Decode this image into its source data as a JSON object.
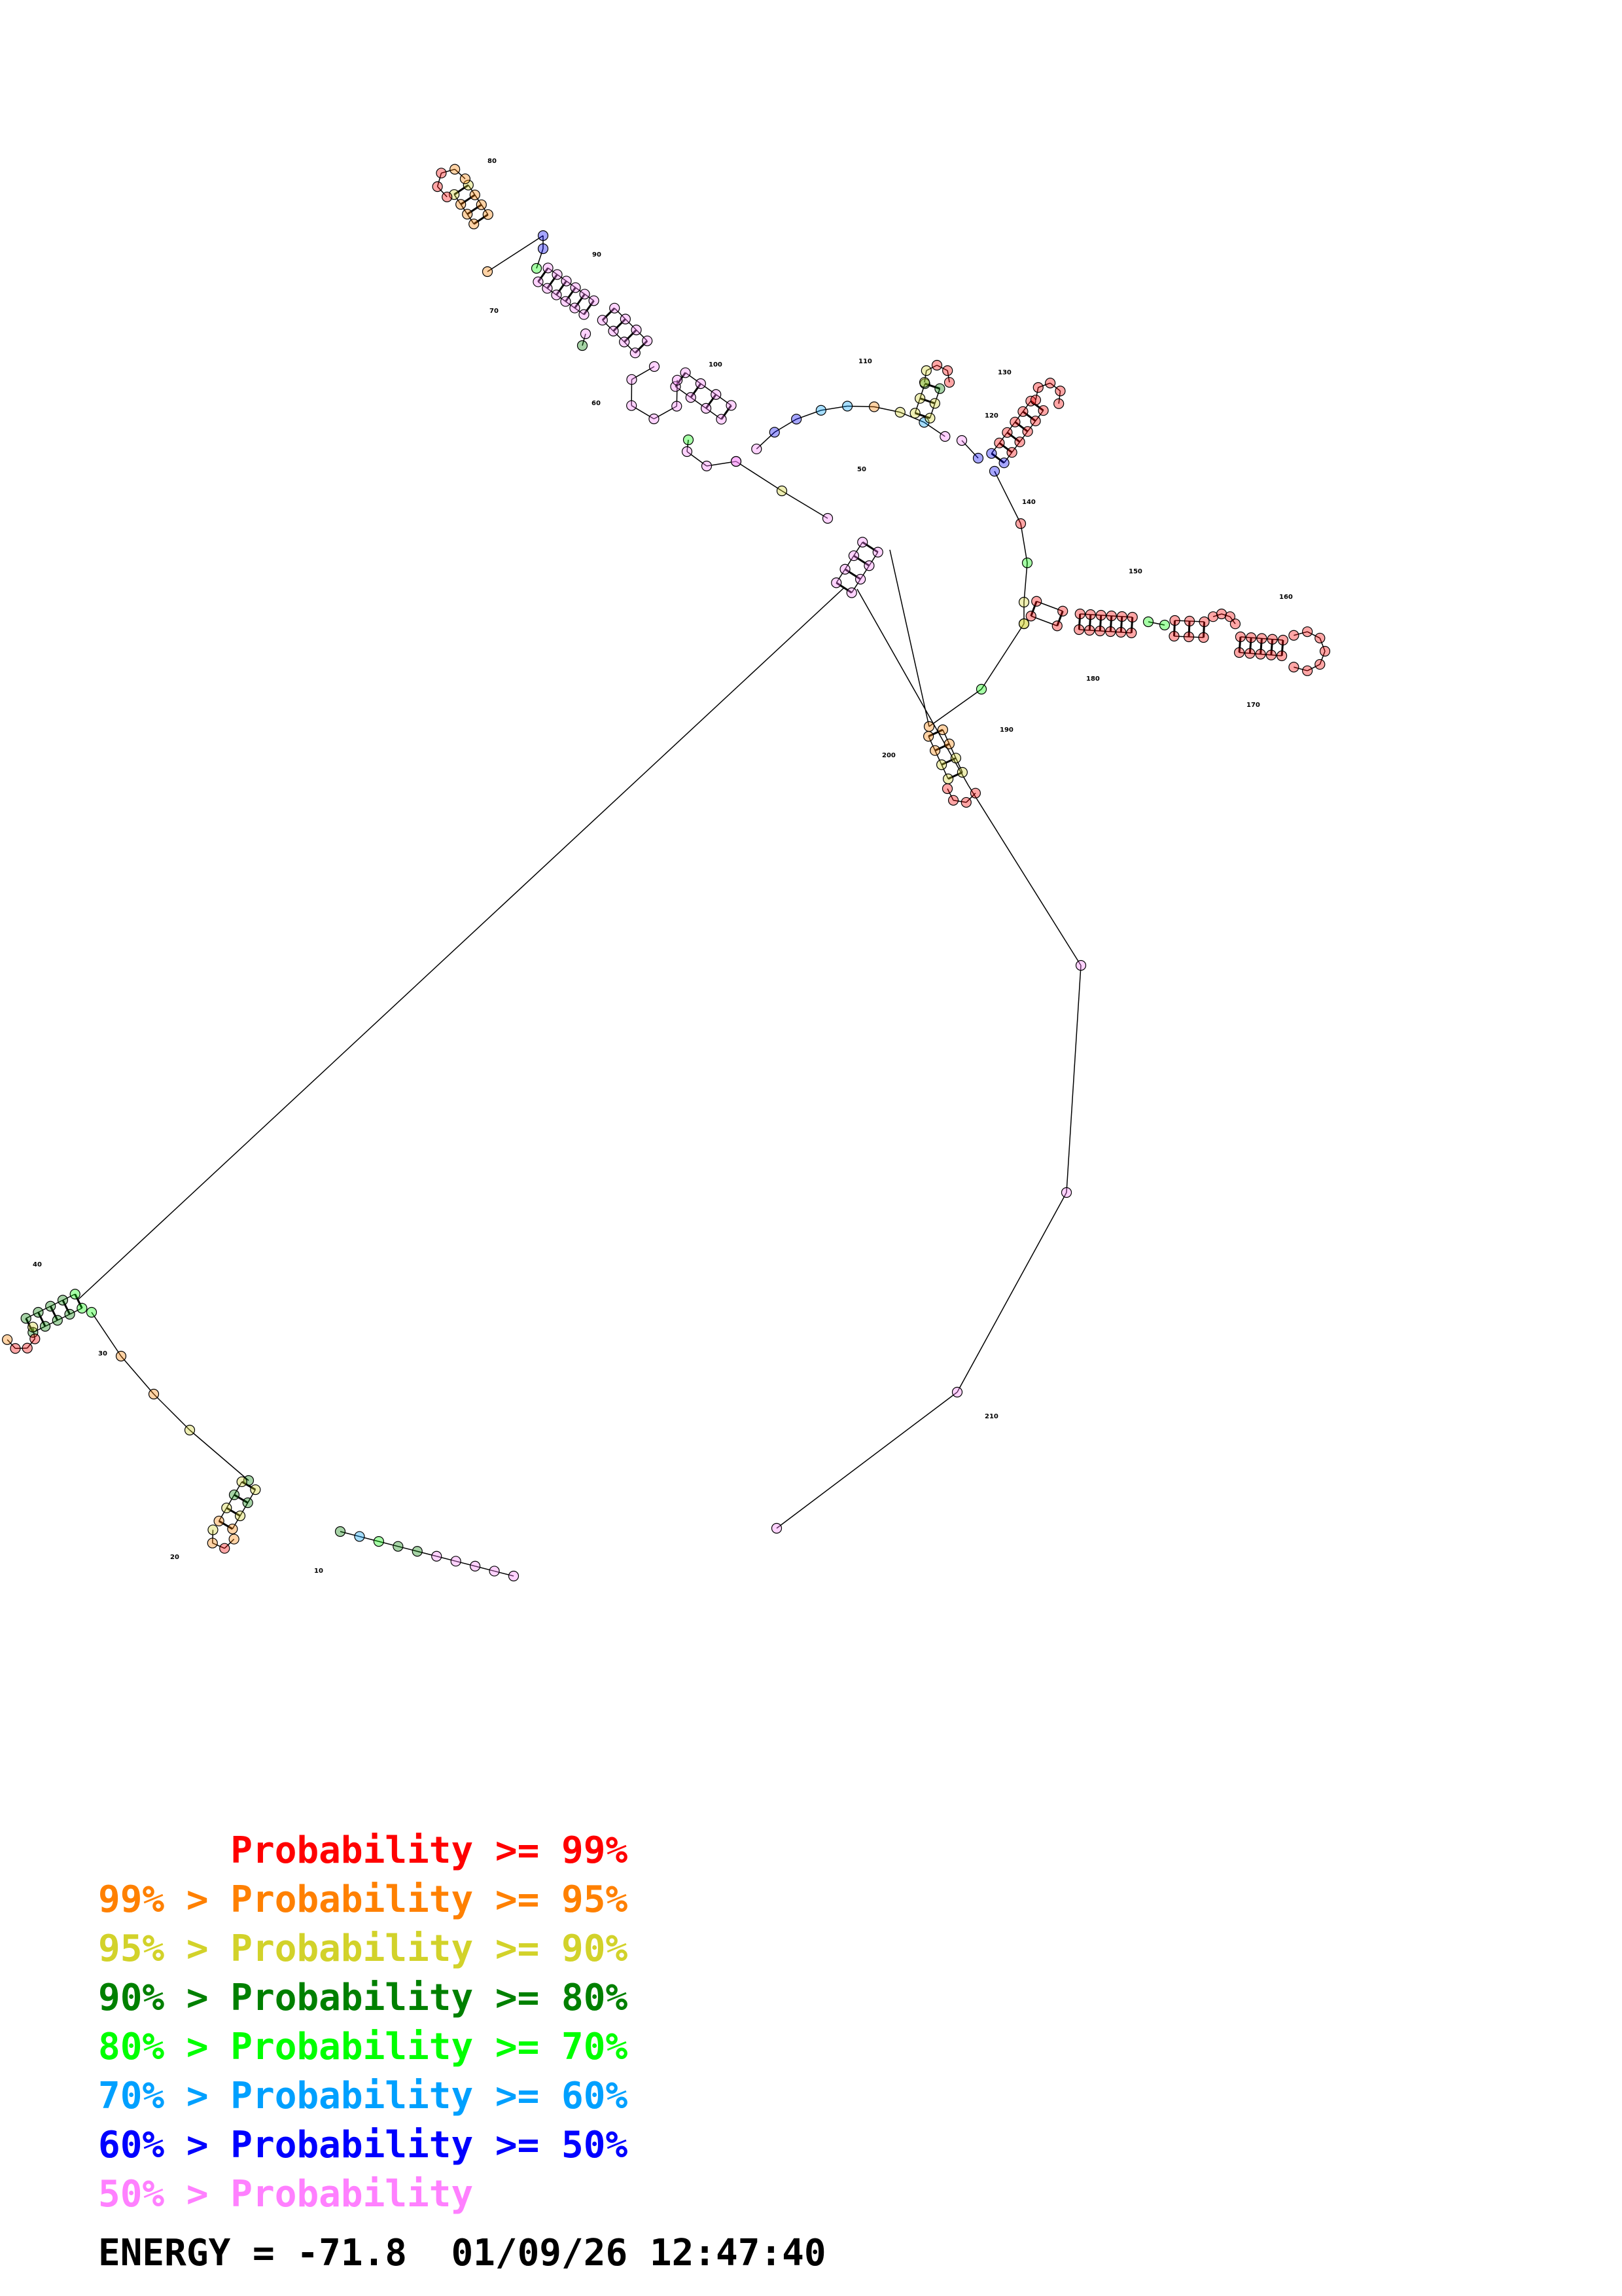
{
  "palette": {
    "p99": "#ff0000",
    "p95": "#ff8000",
    "p90": "#d2d22a",
    "p80": "#008000",
    "p70": "#00ff00",
    "p60": "#00a0ff",
    "p50": "#0000ff",
    "plow": "#ff80ff"
  },
  "legend": [
    {
      "prefix": "",
      "label": "Probability",
      "relation": ">=",
      "threshold": "99%",
      "color_key": "p99"
    },
    {
      "prefix": "99% >",
      "label": "Probability",
      "relation": ">=",
      "threshold": "95%",
      "color_key": "p95"
    },
    {
      "prefix": "95% >",
      "label": "Probability",
      "relation": ">=",
      "threshold": "90%",
      "color_key": "p90"
    },
    {
      "prefix": "90% >",
      "label": "Probability",
      "relation": ">=",
      "threshold": "80%",
      "color_key": "p80"
    },
    {
      "prefix": "80% >",
      "label": "Probability",
      "relation": ">=",
      "threshold": "70%",
      "color_key": "p70"
    },
    {
      "prefix": "70% >",
      "label": "Probability",
      "relation": ">=",
      "threshold": "60%",
      "color_key": "p60"
    },
    {
      "prefix": "60% >",
      "label": "Probability",
      "relation": ">=",
      "threshold": "50%",
      "color_key": "p50"
    },
    {
      "prefix": "50% >",
      "label": "Probability",
      "relation": "",
      "threshold": "",
      "color_key": "plow"
    }
  ],
  "energy_text": "ENERGY = -71.8  01/09/26 12:47:40",
  "position_labels": [
    "10",
    "20",
    "30",
    "40",
    "50",
    "60",
    "70",
    "80",
    "90",
    "100",
    "110",
    "120",
    "130",
    "140",
    "150",
    "160",
    "170",
    "180",
    "190",
    "200",
    "210"
  ]
}
